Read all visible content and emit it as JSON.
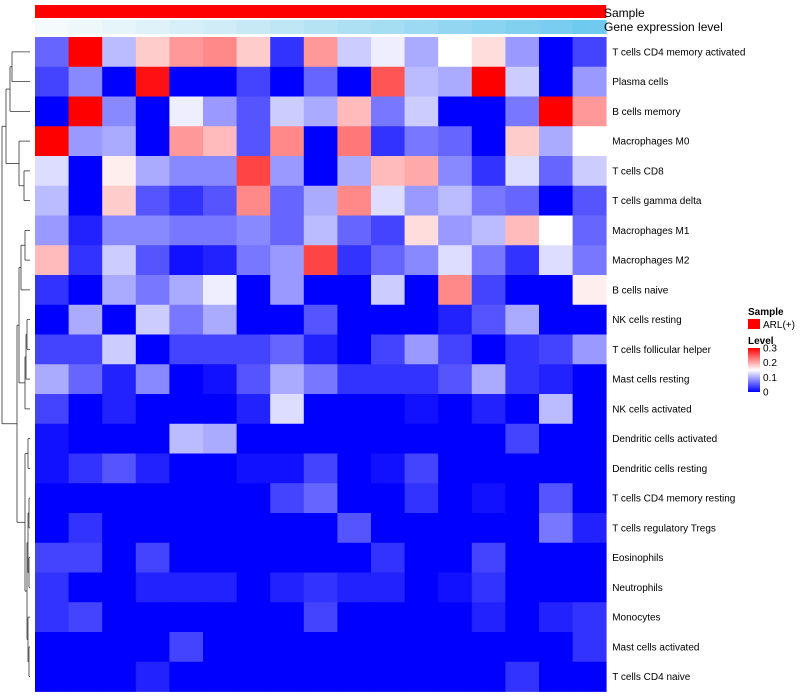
{
  "chart_data": {
    "type": "heatmap",
    "title": "",
    "annotation_tracks": [
      "Sample",
      "Gene expression level"
    ],
    "sample_group": "ARL(+)",
    "sample_color": "#ff0000",
    "expression_track_colors": [
      "#f5fbfd",
      "#eef8fb",
      "#e6f5fa",
      "#dff2f9",
      "#d7eff8",
      "#cfecf7",
      "#c7e9f6",
      "#bfe6f5",
      "#b6e3f4",
      "#aee0f3",
      "#a5ddf3",
      "#9cd9f2",
      "#93d6f1",
      "#8ad3f1",
      "#81d0f0",
      "#78cdf0",
      "#6fcaef"
    ],
    "rows": [
      "T cells CD4 memory activated",
      "Plasma cells",
      "B cells memory",
      "Macrophages M0",
      "T cells CD8",
      "T cells gamma delta",
      "Macrophages M1",
      "Macrophages M2",
      "B cells naive",
      "NK cells resting",
      "T cells follicular helper",
      "Mast cells resting",
      "NK cells activated",
      "Dendritic cells activated",
      "Dendritic cells resting",
      "T cells CD4 memory resting",
      "T cells regulatory  Tregs",
      "Eosinophils",
      "Neutrophils",
      "Monocytes",
      "Mast cells activated",
      "T cells CD4 naive"
    ],
    "n_columns": 17,
    "values": [
      [
        0.06,
        0.3,
        0.11,
        0.18,
        0.21,
        0.22,
        0.18,
        0.03,
        0.21,
        0.12,
        0.14,
        0.1,
        0.15,
        0.17,
        0.09,
        0.0,
        0.04
      ],
      [
        0.04,
        0.08,
        0.0,
        0.29,
        0.0,
        0.0,
        0.04,
        0.0,
        0.06,
        0.0,
        0.25,
        0.11,
        0.1,
        0.3,
        0.12,
        0.0,
        0.09
      ],
      [
        0.0,
        0.3,
        0.08,
        0.0,
        0.14,
        0.09,
        0.05,
        0.12,
        0.1,
        0.19,
        0.07,
        0.12,
        0.0,
        0.0,
        0.07,
        0.3,
        0.21
      ],
      [
        0.3,
        0.09,
        0.1,
        0.0,
        0.21,
        0.19,
        0.05,
        0.22,
        0.0,
        0.23,
        0.03,
        0.07,
        0.06,
        0.0,
        0.18,
        0.1,
        0.15
      ],
      [
        0.13,
        0.0,
        0.16,
        0.1,
        0.08,
        0.08,
        0.26,
        0.09,
        0.0,
        0.1,
        0.19,
        0.2,
        0.08,
        0.03,
        0.13,
        0.06,
        0.12
      ],
      [
        0.11,
        0.0,
        0.18,
        0.05,
        0.03,
        0.05,
        0.22,
        0.06,
        0.1,
        0.22,
        0.13,
        0.09,
        0.11,
        0.07,
        0.06,
        0.0,
        0.05
      ],
      [
        0.09,
        0.02,
        0.08,
        0.08,
        0.07,
        0.07,
        0.08,
        0.06,
        0.11,
        0.06,
        0.04,
        0.17,
        0.09,
        0.11,
        0.19,
        0.15,
        0.06
      ],
      [
        0.19,
        0.03,
        0.12,
        0.05,
        0.01,
        0.02,
        0.07,
        0.09,
        0.26,
        0.03,
        0.06,
        0.08,
        0.13,
        0.07,
        0.03,
        0.13,
        0.07
      ],
      [
        0.03,
        0.0,
        0.1,
        0.07,
        0.1,
        0.14,
        0.0,
        0.09,
        0.0,
        0.0,
        0.12,
        0.0,
        0.22,
        0.04,
        0.0,
        0.0,
        0.16
      ],
      [
        0.0,
        0.1,
        0.0,
        0.12,
        0.07,
        0.1,
        0.0,
        0.0,
        0.05,
        0.0,
        0.0,
        0.0,
        0.02,
        0.05,
        0.1,
        0.0,
        0.0
      ],
      [
        0.04,
        0.04,
        0.12,
        0.0,
        0.04,
        0.04,
        0.04,
        0.06,
        0.02,
        0.0,
        0.04,
        0.09,
        0.04,
        0.0,
        0.03,
        0.04,
        0.09
      ],
      [
        0.1,
        0.06,
        0.02,
        0.08,
        0.0,
        0.01,
        0.05,
        0.1,
        0.07,
        0.03,
        0.03,
        0.03,
        0.05,
        0.1,
        0.03,
        0.02,
        0.0
      ],
      [
        0.04,
        0.0,
        0.02,
        0.0,
        0.0,
        0.0,
        0.02,
        0.13,
        0.0,
        0.0,
        0.0,
        0.01,
        0.0,
        0.02,
        0.0,
        0.11,
        0.0
      ],
      [
        0.01,
        0.0,
        0.0,
        0.0,
        0.11,
        0.1,
        0.0,
        0.0,
        0.0,
        0.0,
        0.0,
        0.0,
        0.0,
        0.0,
        0.04,
        0.0,
        0.0
      ],
      [
        0.01,
        0.03,
        0.05,
        0.02,
        0.0,
        0.0,
        0.01,
        0.01,
        0.04,
        0.0,
        0.01,
        0.04,
        0.0,
        0.0,
        0.0,
        0.0,
        0.0
      ],
      [
        0.0,
        0.0,
        0.0,
        0.0,
        0.0,
        0.0,
        0.0,
        0.04,
        0.06,
        0.0,
        0.0,
        0.03,
        0.0,
        0.01,
        0.0,
        0.05,
        0.0
      ],
      [
        0.0,
        0.03,
        0.0,
        0.0,
        0.0,
        0.0,
        0.0,
        0.0,
        0.0,
        0.05,
        0.0,
        0.0,
        0.0,
        0.0,
        0.0,
        0.07,
        0.02
      ],
      [
        0.04,
        0.04,
        0.0,
        0.04,
        0.0,
        0.0,
        0.0,
        0.0,
        0.0,
        0.0,
        0.03,
        0.0,
        0.0,
        0.04,
        0.0,
        0.0,
        0.0
      ],
      [
        0.03,
        0.0,
        0.0,
        0.02,
        0.02,
        0.02,
        0.0,
        0.02,
        0.03,
        0.02,
        0.02,
        0.0,
        0.01,
        0.03,
        0.0,
        0.0,
        0.0
      ],
      [
        0.03,
        0.04,
        0.0,
        0.0,
        0.0,
        0.0,
        0.0,
        0.0,
        0.04,
        0.0,
        0.0,
        0.0,
        0.0,
        0.02,
        0.0,
        0.02,
        0.03
      ],
      [
        0.0,
        0.0,
        0.0,
        0.0,
        0.04,
        0.0,
        0.0,
        0.0,
        0.0,
        0.0,
        0.0,
        0.0,
        0.0,
        0.0,
        0.0,
        0.0,
        0.03
      ],
      [
        0.0,
        0.0,
        0.0,
        0.02,
        0.0,
        0.0,
        0.0,
        0.0,
        0.0,
        0.0,
        0.0,
        0.0,
        0.0,
        0.0,
        0.03,
        0.0,
        0.0
      ]
    ],
    "color_scale": {
      "min": 0,
      "mid": 0.15,
      "max": 0.3,
      "low_color": "#0000ff",
      "mid_color": "#ffffff",
      "high_color": "#ff0000"
    },
    "legend": {
      "sample_title": "Sample",
      "sample_entry": "ARL(+)",
      "level_title": "Level",
      "ticks": [
        0,
        0.1,
        0.2,
        0.3
      ],
      "tick_labels": [
        "0",
        "0.1",
        "0.2",
        "0.3"
      ],
      "position": "right"
    },
    "dendrogram": "rows"
  }
}
